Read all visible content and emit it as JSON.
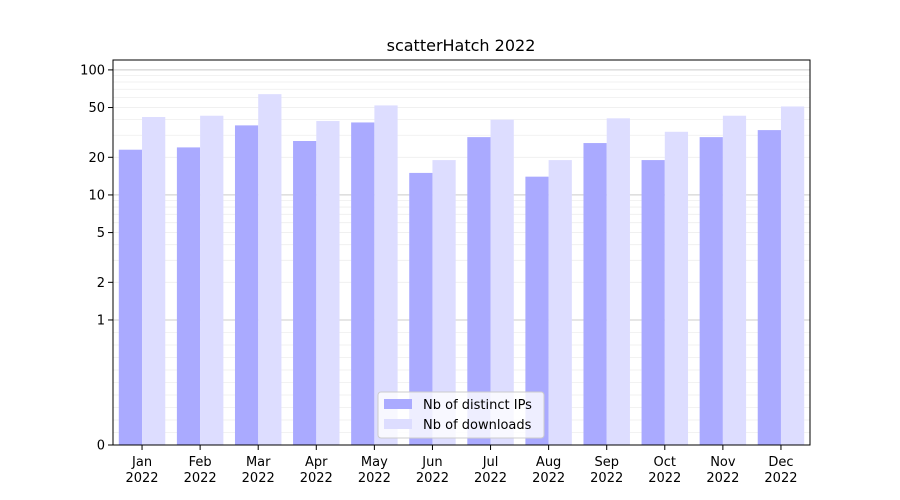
{
  "chart_data": {
    "type": "bar",
    "title": "scatterHatch 2022",
    "xlabel": "",
    "ylabel": "",
    "yscale": "symlog",
    "ylim": [
      0,
      120
    ],
    "yticks": [
      0,
      1,
      2,
      5,
      10,
      20,
      50,
      100
    ],
    "grid": true,
    "legend_position": "bottom-center",
    "categories": [
      [
        "Jan",
        "2022"
      ],
      [
        "Feb",
        "2022"
      ],
      [
        "Mar",
        "2022"
      ],
      [
        "Apr",
        "2022"
      ],
      [
        "May",
        "2022"
      ],
      [
        "Jun",
        "2022"
      ],
      [
        "Jul",
        "2022"
      ],
      [
        "Aug",
        "2022"
      ],
      [
        "Sep",
        "2022"
      ],
      [
        "Oct",
        "2022"
      ],
      [
        "Nov",
        "2022"
      ],
      [
        "Dec",
        "2022"
      ]
    ],
    "series": [
      {
        "name": "Nb of distinct IPs",
        "color": "#aaaaff",
        "values": [
          23,
          24,
          36,
          27,
          38,
          15,
          29,
          14,
          26,
          19,
          29,
          33
        ]
      },
      {
        "name": "Nb of downloads",
        "color": "#ddddff",
        "values": [
          42,
          43,
          64,
          39,
          52,
          19,
          40,
          19,
          41,
          32,
          43,
          51
        ]
      }
    ]
  }
}
